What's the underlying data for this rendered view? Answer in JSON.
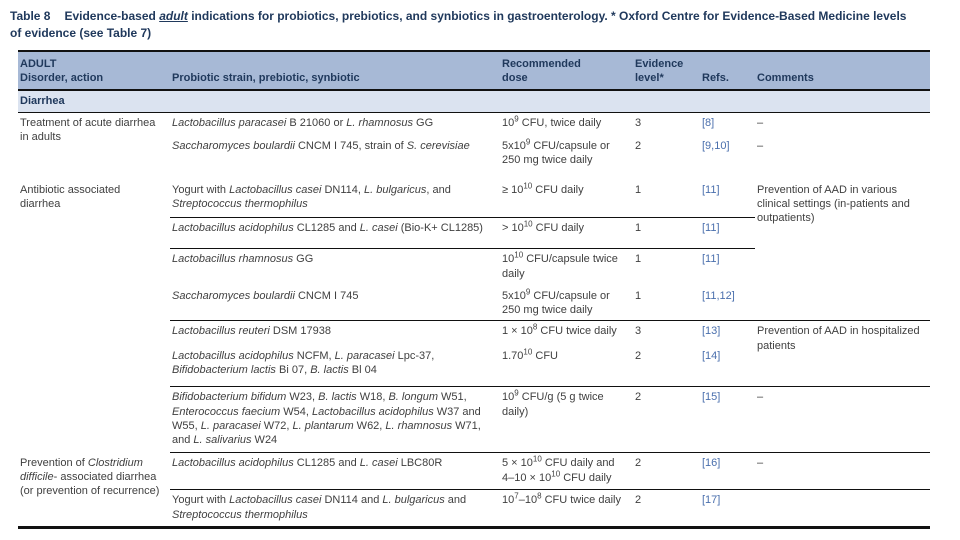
{
  "page": {
    "title_label": "Table 8",
    "title_caption_html": "Evidence-based <u><i>adult</i></u> indications for probiotics, prebiotics, and synbiotics in gastroenterology. * Oxford Centre for Evidence-Based Medicine levels of evidence (see Table 7)"
  },
  "table": {
    "columns": {
      "disorder_line1": "ADULT",
      "disorder_line2": "Disorder, action",
      "strain": "Probiotic strain, prebiotic, synbiotic",
      "dose_line1": "Recommended",
      "dose_line2": "dose",
      "evidence_line1": "Evidence",
      "evidence_line2": "level*",
      "refs": "Refs.",
      "comments": "Comments"
    },
    "section": "Diarrhea",
    "rows": [
      {
        "disorder_html": "Treatment of acute diarrhea in adults",
        "strain_html": "<i>Lactobacillus paracasei</i> B 21060 or <i>L. rhamnosus</i> GG",
        "dose_html": "10<sup>9</sup> CFU, twice daily",
        "level": "3",
        "ref": "[8]",
        "comment": "–"
      },
      {
        "strain_html": "<i>Saccharomyces boulardii</i> CNCM I 745, strain of <i>S. cerevisiae</i>",
        "dose_html": "5x10<sup>9</sup> CFU/capsule or 250 mg twice daily",
        "level": "2",
        "ref": "[9,10]",
        "comment": "–"
      },
      {
        "disorder_html": "Antibiotic associated diarrhea",
        "strain_html": "Yogurt with <i>Lactobacillus casei</i> DN114, <i>L. bulgaricus</i>, and <i>Streptococcus thermophilus</i>",
        "dose_html": "≥ 10<sup>10</sup> CFU daily",
        "level": "1",
        "ref": "[11]",
        "comment": "Prevention of AAD in various clinical settings (in-patients and outpatients)"
      },
      {
        "strain_html": "<i>Lactobacillus acidophilus</i> CL1285 and <i>L. casei</i> (Bio-K+ CL1285)",
        "dose_html": "&gt; 10<sup>10</sup> CFU daily",
        "level": "1",
        "ref": "[11]"
      },
      {
        "strain_html": "<i>Lactobacillus rhamnosus</i> GG",
        "dose_html": "10<sup>10</sup> CFU/capsule twice daily",
        "level": "1",
        "ref": "[11]"
      },
      {
        "strain_html": "<i>Saccharomyces boulardii</i> CNCM I 745",
        "dose_html": "5x10<sup>9</sup> CFU/capsule or 250 mg twice daily",
        "level": "1",
        "ref": "[11,12]"
      },
      {
        "strain_html": "<i>Lactobacillus reuteri</i> DSM 17938",
        "dose_html": "1 × 10<sup>8</sup> CFU twice daily",
        "level": "3",
        "ref": "[13]",
        "comment": "Prevention of AAD in hospitalized patients"
      },
      {
        "strain_html": "<i>Lactobacillus acidophilus</i> NCFM, <i>L. paracasei</i> Lpc-37, <i>Bifidobacterium lactis</i> Bi 07, <i>B. lactis</i> Bl 04",
        "dose_html": "1.70<sup>10</sup> CFU",
        "level": "2",
        "ref": "[14]"
      },
      {
        "strain_html": "<i>Bifidobacterium bifidum</i> W23, <i>B. lactis</i> W18, <i>B. longum</i> W51, <i>Enterococcus faecium</i> W54, <i>Lactobacillus acidophilus</i> W37 and W55, <i>L. paracasei</i> W72, <i>L. plantarum</i> W62, <i>L. rhamnosus</i> W71, and <i>L. salivarius</i> W24",
        "dose_html": "10<sup>9</sup> CFU/g (5 g twice daily)",
        "level": "2",
        "ref": "[15]",
        "comment": "–"
      },
      {
        "disorder_html": "Prevention of <i>Clostridium difficile</i>- associated diarrhea (or prevention of recurrence)",
        "strain_html": "<i>Lactobacillus acidophilus</i> CL1285 and <i>L. casei</i> LBC80R",
        "dose_html": "5 × 10<sup>10</sup> CFU daily and 4–10 × 10<sup>10</sup> CFU daily",
        "level": "2",
        "ref": "[16]",
        "comment": "–"
      },
      {
        "strain_html": "Yogurt with <i>Lactobacillus casei</i> DN114 and <i>L. bulgaricus</i> and <i>Streptococcus thermophilus</i>",
        "dose_html": "10<sup>7</sup>–10<sup>8</sup> CFU twice daily",
        "level": "2",
        "ref": "[17]",
        "comment": ""
      }
    ]
  }
}
